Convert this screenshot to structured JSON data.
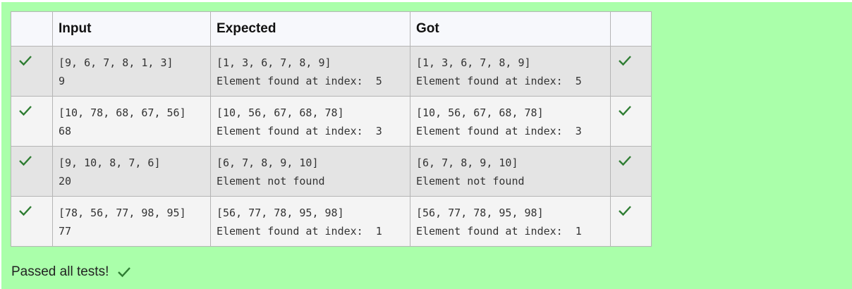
{
  "table": {
    "headers": {
      "status": "",
      "input": "Input",
      "expected": "Expected",
      "got": "Got",
      "status2": ""
    },
    "rows": [
      {
        "input_line1": "[9, 6, 7, 8, 1, 3]",
        "input_line2": "9",
        "expected_line1": "[1, 3, 6, 7, 8, 9]",
        "expected_line2": "Element found at index:  5",
        "got_line1": "[1, 3, 6, 7, 8, 9]",
        "got_line2": "Element found at index:  5",
        "passed": true
      },
      {
        "input_line1": "[10, 78, 68, 67, 56]",
        "input_line2": "68",
        "expected_line1": "[10, 56, 67, 68, 78]",
        "expected_line2": "Element found at index:  3",
        "got_line1": "[10, 56, 67, 68, 78]",
        "got_line2": "Element found at index:  3",
        "passed": true
      },
      {
        "input_line1": "[9, 10, 8, 7, 6]",
        "input_line2": "20",
        "expected_line1": "[6, 7, 8, 9, 10]",
        "expected_line2": "Element not found",
        "got_line1": "[6, 7, 8, 9, 10]",
        "got_line2": "Element not found",
        "passed": true
      },
      {
        "input_line1": "[78, 56, 77, 98, 95]",
        "input_line2": "77",
        "expected_line1": "[56, 77, 78, 95, 98]",
        "expected_line2": "Element found at index:  1",
        "got_line1": "[56, 77, 78, 95, 98]",
        "got_line2": "Element found at index:  1",
        "passed": true
      }
    ]
  },
  "footer": {
    "message": "Passed all tests!"
  },
  "icons": {
    "check": "check-icon"
  },
  "colors": {
    "panel_bg": "#aaffaa",
    "check": "#2e7d32",
    "row_odd": "#e4e4e4",
    "row_even": "#f4f4f4",
    "header_bg": "#f7f8fc"
  }
}
